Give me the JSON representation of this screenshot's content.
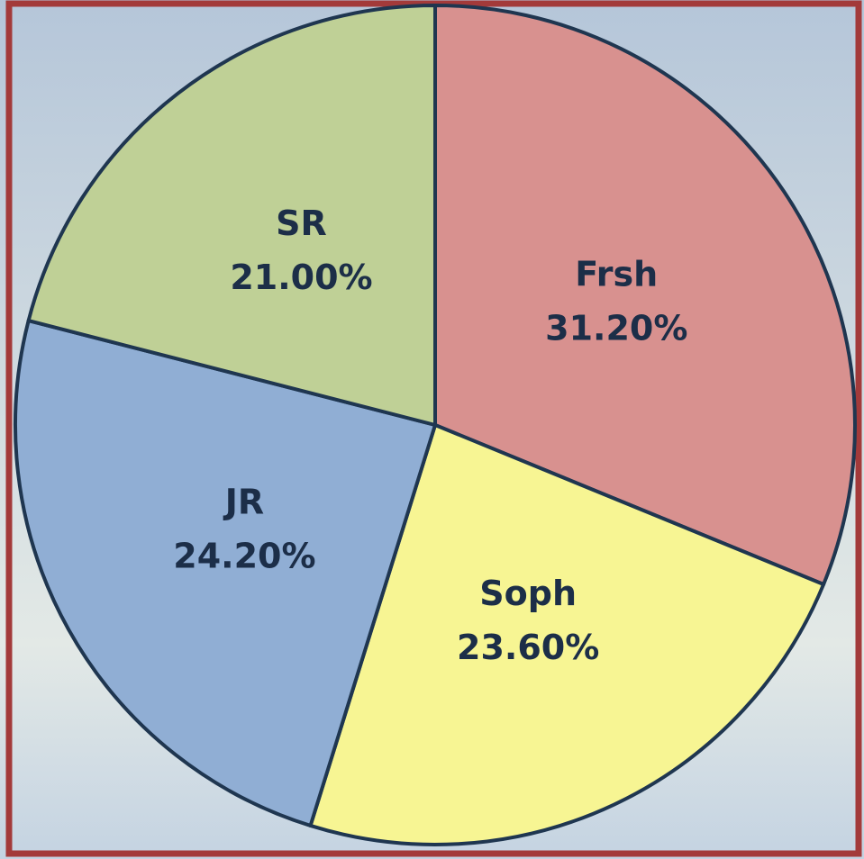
{
  "chart_data": {
    "type": "pie",
    "categories": [
      "Frsh",
      "Soph",
      "JR",
      "SR"
    ],
    "values": [
      31.2,
      23.6,
      24.2,
      21.0
    ],
    "value_labels": [
      "31.20%",
      "23.60%",
      "24.20%",
      "21.00%"
    ],
    "colors": [
      "#d8918f",
      "#f7f593",
      "#90aed4",
      "#bfd096"
    ]
  }
}
